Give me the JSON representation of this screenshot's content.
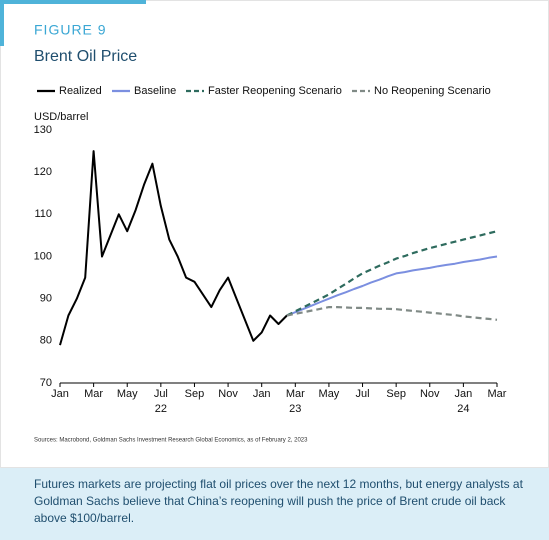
{
  "figure_label": "FIGURE 9",
  "chart_data": {
    "type": "line",
    "title": "Brent Oil Price",
    "y_label": "USD/barrel",
    "categories": [
      "Jan",
      null,
      null,
      null,
      "Mar",
      null,
      null,
      null,
      "May",
      null,
      null,
      null,
      "Jul",
      null,
      null,
      null,
      "Sep",
      null,
      null,
      null,
      "Nov",
      null,
      null,
      null,
      "Jan",
      null,
      null,
      null,
      "Mar",
      null,
      null,
      null,
      "May",
      null,
      null,
      null,
      "Jul",
      null,
      null,
      null,
      "Sep",
      null,
      null,
      null,
      "Nov",
      null,
      null,
      null,
      "Jan",
      null,
      null,
      null,
      "Mar"
    ],
    "year_labels": [
      "22",
      "23",
      "24"
    ],
    "ylim": [
      70,
      130
    ],
    "yticks": [
      70,
      80,
      90,
      100,
      110,
      120,
      130
    ],
    "series": [
      {
        "name": "Realized",
        "color": "#000000",
        "style": "solid",
        "values": [
          79,
          86,
          90,
          95,
          125,
          100,
          105,
          110,
          106,
          111,
          117,
          122,
          112,
          104,
          100,
          95,
          94,
          91,
          88,
          92,
          95,
          90,
          85,
          80,
          82,
          86,
          84,
          86,
          null,
          null,
          null,
          null,
          null,
          null,
          null,
          null,
          null,
          null,
          null,
          null,
          null,
          null,
          null,
          null,
          null,
          null,
          null,
          null,
          null,
          null,
          null,
          null,
          null
        ]
      },
      {
        "name": "Baseline",
        "color": "#7b8fe0",
        "style": "solid",
        "values": [
          null,
          null,
          null,
          null,
          null,
          null,
          null,
          null,
          null,
          null,
          null,
          null,
          null,
          null,
          null,
          null,
          null,
          null,
          null,
          null,
          null,
          null,
          null,
          null,
          null,
          null,
          null,
          86,
          86.8,
          87.6,
          88.4,
          89.2,
          90,
          90.8,
          91.5,
          92.3,
          93,
          93.8,
          94.5,
          95.3,
          96,
          96.3,
          96.7,
          97,
          97.3,
          97.7,
          98,
          98.3,
          98.7,
          99,
          99.3,
          99.7,
          100
        ]
      },
      {
        "name": "Faster Reopening Scenario",
        "color": "#2e6b5e",
        "style": "dashed",
        "values": [
          null,
          null,
          null,
          null,
          null,
          null,
          null,
          null,
          null,
          null,
          null,
          null,
          null,
          null,
          null,
          null,
          null,
          null,
          null,
          null,
          null,
          null,
          null,
          null,
          null,
          null,
          null,
          86,
          87,
          88,
          89,
          90,
          91,
          92.3,
          93.5,
          94.8,
          96,
          96.9,
          97.8,
          98.6,
          99.5,
          100.1,
          100.8,
          101.4,
          102,
          102.5,
          103,
          103.5,
          104,
          104.5,
          105,
          105.5,
          106
        ]
      },
      {
        "name": "No Reopening Scenario",
        "color": "#808a86",
        "style": "dashed",
        "values": [
          null,
          null,
          null,
          null,
          null,
          null,
          null,
          null,
          null,
          null,
          null,
          null,
          null,
          null,
          null,
          null,
          null,
          null,
          null,
          null,
          null,
          null,
          null,
          null,
          null,
          null,
          null,
          86,
          86.4,
          86.8,
          87.2,
          87.6,
          88,
          88,
          87.9,
          87.8,
          87.8,
          87.7,
          87.6,
          87.6,
          87.5,
          87.3,
          87.1,
          86.9,
          86.7,
          86.5,
          86.3,
          86.1,
          85.8,
          85.6,
          85.4,
          85.2,
          85
        ]
      }
    ],
    "grid": false,
    "legend": "top"
  },
  "source": "Sources: Macrobond, Goldman Sachs Investment Research Global Economics, as of February 2, 2023",
  "caption": "Futures markets are projecting flat oil prices over the next 12 months, but energy analysts at Goldman Sachs believe that China’s reopening will push the price of Brent crude oil back above $100/barrel."
}
